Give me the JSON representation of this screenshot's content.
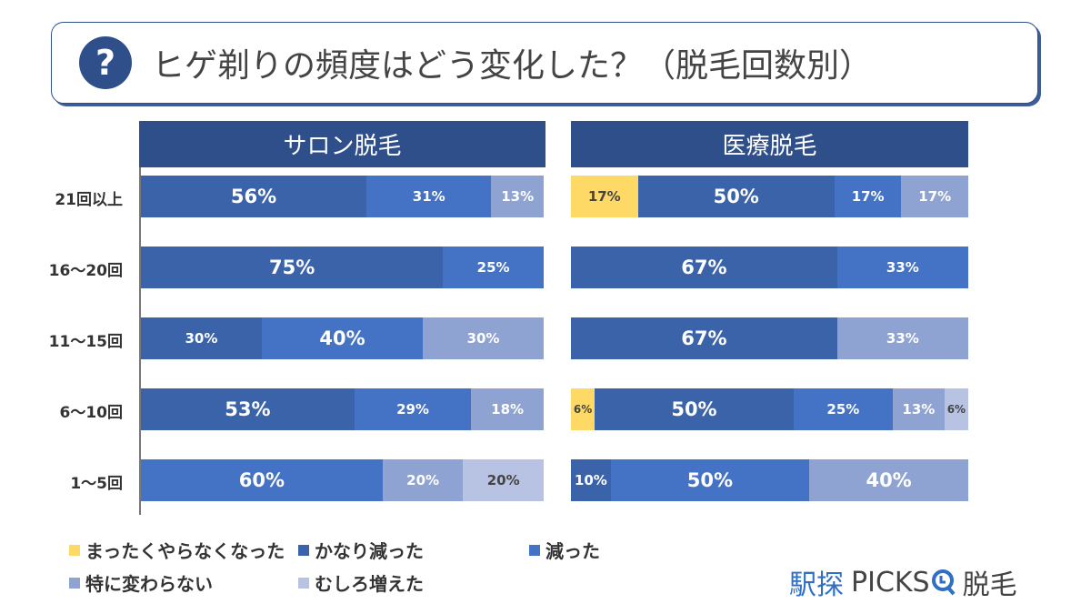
{
  "title": "ヒゲ剃りの頻度はどう変化した？（脱毛回数別）",
  "title_icon": "question-circle-icon",
  "logo": {
    "part1": "駅探",
    "part2": "PICKS",
    "part3": "脱毛",
    "icon": "magnifier-icon"
  },
  "chart_data": [
    {
      "type": "stacked-bar-horizontal",
      "title": "サロン脱毛",
      "categories": [
        "21回以上",
        "16〜20回",
        "11〜15回",
        "6〜10回",
        "1〜5回"
      ],
      "series": [
        {
          "name": "まったくやらなくなった",
          "color": "#FFD966",
          "values": [
            0,
            0,
            0,
            0,
            0
          ]
        },
        {
          "name": "かなり減った",
          "color": "#3A63AA",
          "values": [
            56,
            75,
            30,
            53,
            0
          ]
        },
        {
          "name": "減った",
          "color": "#4472C4",
          "values": [
            31,
            25,
            40,
            29,
            60
          ]
        },
        {
          "name": "特に変わらない",
          "color": "#8FA3D3",
          "values": [
            13,
            0,
            30,
            18,
            20
          ]
        },
        {
          "name": "むしろ増えた",
          "color": "#B8C2E2",
          "values": [
            0,
            0,
            0,
            0,
            20
          ]
        }
      ]
    },
    {
      "type": "stacked-bar-horizontal",
      "title": "医療脱毛",
      "categories": [
        "21回以上",
        "16〜20回",
        "11〜15回",
        "6〜10回",
        "1〜5回"
      ],
      "series": [
        {
          "name": "まったくやらなくなった",
          "color": "#FFD966",
          "values": [
            17,
            0,
            0,
            6,
            0
          ]
        },
        {
          "name": "かなり減った",
          "color": "#3A63AA",
          "values": [
            50,
            67,
            67,
            50,
            10
          ]
        },
        {
          "name": "減った",
          "color": "#4472C4",
          "values": [
            17,
            33,
            0,
            25,
            50
          ]
        },
        {
          "name": "特に変わらない",
          "color": "#8FA3D3",
          "values": [
            17,
            0,
            33,
            13,
            40
          ]
        },
        {
          "name": "むしろ増えた",
          "color": "#B8C2E2",
          "values": [
            0,
            0,
            0,
            6,
            0
          ]
        }
      ]
    }
  ]
}
